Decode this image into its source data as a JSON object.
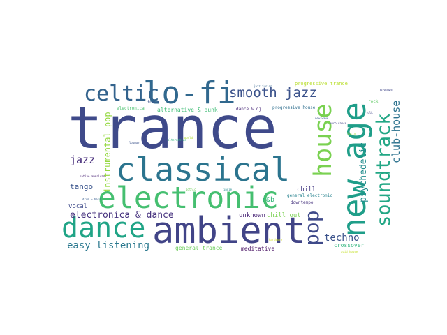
{
  "words": [
    {
      "text": "trance",
      "color": "#3f4a8a"
    },
    {
      "text": "lo-fi",
      "color": "#31688e"
    },
    {
      "text": "celtic",
      "color": "#33638d"
    },
    {
      "text": "classical",
      "color": "#2b748e"
    },
    {
      "text": "electronic",
      "color": "#45bf70"
    },
    {
      "text": "ambient",
      "color": "#414487"
    },
    {
      "text": "dance",
      "color": "#20a486"
    },
    {
      "text": "smooth jazz",
      "color": "#3b528b"
    },
    {
      "text": "house",
      "color": "#7ad151"
    },
    {
      "text": "new age",
      "color": "#1f9e89"
    },
    {
      "text": "soundtrack",
      "color": "#22a785"
    },
    {
      "text": "pop",
      "color": "#3e4989"
    },
    {
      "text": "club-house",
      "color": "#2c728e"
    },
    {
      "text": "psychedelic",
      "color": "#228c8d"
    },
    {
      "text": "jazz",
      "color": "#472d7b"
    },
    {
      "text": "instrumental pop",
      "color": "#95d840"
    },
    {
      "text": "tango",
      "color": "#3a548c"
    },
    {
      "text": "electronica & dance",
      "color": "#46327e"
    },
    {
      "text": "easy listening",
      "color": "#2a788e"
    },
    {
      "text": "techno",
      "color": "#3b528b"
    },
    {
      "text": "vocal",
      "color": "#3e4a89"
    },
    {
      "text": "unknown",
      "color": "#482475"
    },
    {
      "text": "chill out",
      "color": "#7ad151"
    },
    {
      "text": "chill",
      "color": "#443a83"
    },
    {
      "text": "r&b",
      "color": "#35b779"
    },
    {
      "text": "general trance",
      "color": "#6ccd5a"
    },
    {
      "text": "meditative",
      "color": "#471063"
    },
    {
      "text": "crossover",
      "color": "#2fb47c"
    },
    {
      "text": "downtempo",
      "color": "#46337e"
    },
    {
      "text": "general electronic",
      "color": "#26828e"
    },
    {
      "text": "alternative & punk",
      "color": "#3dbc74"
    },
    {
      "text": "dance & dj",
      "color": "#482878"
    },
    {
      "text": "progressive trance",
      "color": "#b8de29"
    },
    {
      "text": "progressive house",
      "color": "#2e6e8e"
    },
    {
      "text": "dream",
      "color": "#3b528b"
    },
    {
      "text": "electronica",
      "color": "#4ac16d"
    },
    {
      "text": "rock",
      "color": "#5ec962"
    },
    {
      "text": "breaks",
      "color": "#404688"
    },
    {
      "text": "jazz fusion",
      "color": "#33638d"
    },
    {
      "text": "new wave",
      "color": "#38598c"
    },
    {
      "text": "alternative",
      "color": "#2fb47c"
    },
    {
      "text": "native american",
      "color": "#482173"
    },
    {
      "text": "euro dance",
      "color": "#414487"
    },
    {
      "text": "hardcore",
      "color": "#d2e21b"
    },
    {
      "text": "world",
      "color": "#addc30"
    },
    {
      "text": "lounge",
      "color": "#3b528b"
    },
    {
      "text": "indie",
      "color": "#238a8d"
    },
    {
      "text": "gothic",
      "color": "#6ece58"
    },
    {
      "text": "folk",
      "color": "#404688"
    },
    {
      "text": "latin",
      "color": "#9fda3a"
    },
    {
      "text": "drum & bass",
      "color": "#365c8d"
    },
    {
      "text": "acid house",
      "color": "#c2df23"
    }
  ]
}
